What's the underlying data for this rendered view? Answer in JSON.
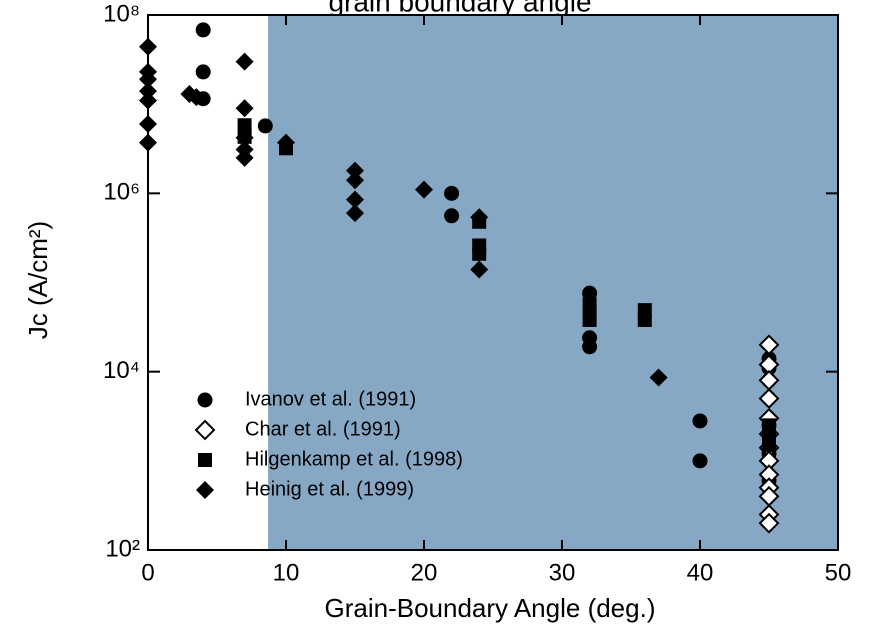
{
  "chart_data": {
    "type": "scatter",
    "title": "grain boundary angle",
    "xlabel": "Grain-Boundary Angle (deg.)",
    "ylabel": "Jc (A/cm²)",
    "xlim": [
      0,
      50
    ],
    "xticks": [
      0,
      10,
      20,
      30,
      40,
      50
    ],
    "ylim": [
      100,
      100000000
    ],
    "log_y": true,
    "yticks": [
      {
        "value": 100,
        "label": "10²"
      },
      {
        "value": 10000,
        "label": "10⁴"
      },
      {
        "value": 1000000,
        "label": "10⁶"
      },
      {
        "value": 100000000,
        "label": "10⁸"
      }
    ],
    "legend": "lower left",
    "shaded_region": {
      "xmin": 8.7,
      "xmax": 50,
      "color": "#86a8c5"
    },
    "series": [
      {
        "name": "Ivanov et al. (1991)",
        "marker": "circle",
        "color": "#000000",
        "x": [
          4,
          4,
          4,
          8.5,
          22,
          22,
          32,
          32,
          32,
          40,
          40,
          45,
          45,
          45,
          45,
          45,
          45,
          45
        ],
        "values": [
          68000000,
          23000000,
          11500000,
          5700000,
          1000000,
          560000,
          76000,
          24000,
          19000,
          2800,
          1000,
          14000,
          11000,
          8000,
          5000,
          2500,
          1200,
          600
        ]
      },
      {
        "name": "Char et al. (1991)",
        "marker": "open-diamond",
        "color": "#000000",
        "x": [
          45,
          45,
          45,
          45,
          45,
          45,
          45,
          45,
          45,
          45,
          45,
          45,
          45
        ],
        "values": [
          20000,
          12000,
          8000,
          5000,
          3000,
          2000,
          1400,
          1000,
          700,
          500,
          400,
          250,
          200
        ]
      },
      {
        "name": "Hilgenkamp et al. (1998)",
        "marker": "square",
        "color": "#000000",
        "x": [
          7,
          7,
          10,
          24,
          24,
          24,
          32,
          32,
          32,
          36,
          36,
          45,
          45,
          45
        ],
        "values": [
          5800000,
          4300000,
          3200000,
          480000,
          260000,
          210000,
          57000,
          47000,
          38000,
          49000,
          38000,
          2500,
          2000,
          1500
        ]
      },
      {
        "name": "Heinig et al. (1999)",
        "marker": "diamond",
        "color": "#000000",
        "x": [
          0,
          0,
          0,
          0,
          0,
          0,
          0,
          3,
          3.5,
          7,
          7,
          7,
          7,
          7,
          10,
          15,
          15,
          15,
          15,
          20,
          24,
          24,
          37
        ],
        "values": [
          44000000,
          23000000,
          19000000,
          14000000,
          11000000,
          6000000,
          3700000,
          13000000,
          12000000,
          30000000,
          9000000,
          4200000,
          3100000,
          2500000,
          3700000,
          1800000,
          1400000,
          850000,
          600000,
          1100000,
          540000,
          140000,
          8600
        ]
      }
    ]
  }
}
